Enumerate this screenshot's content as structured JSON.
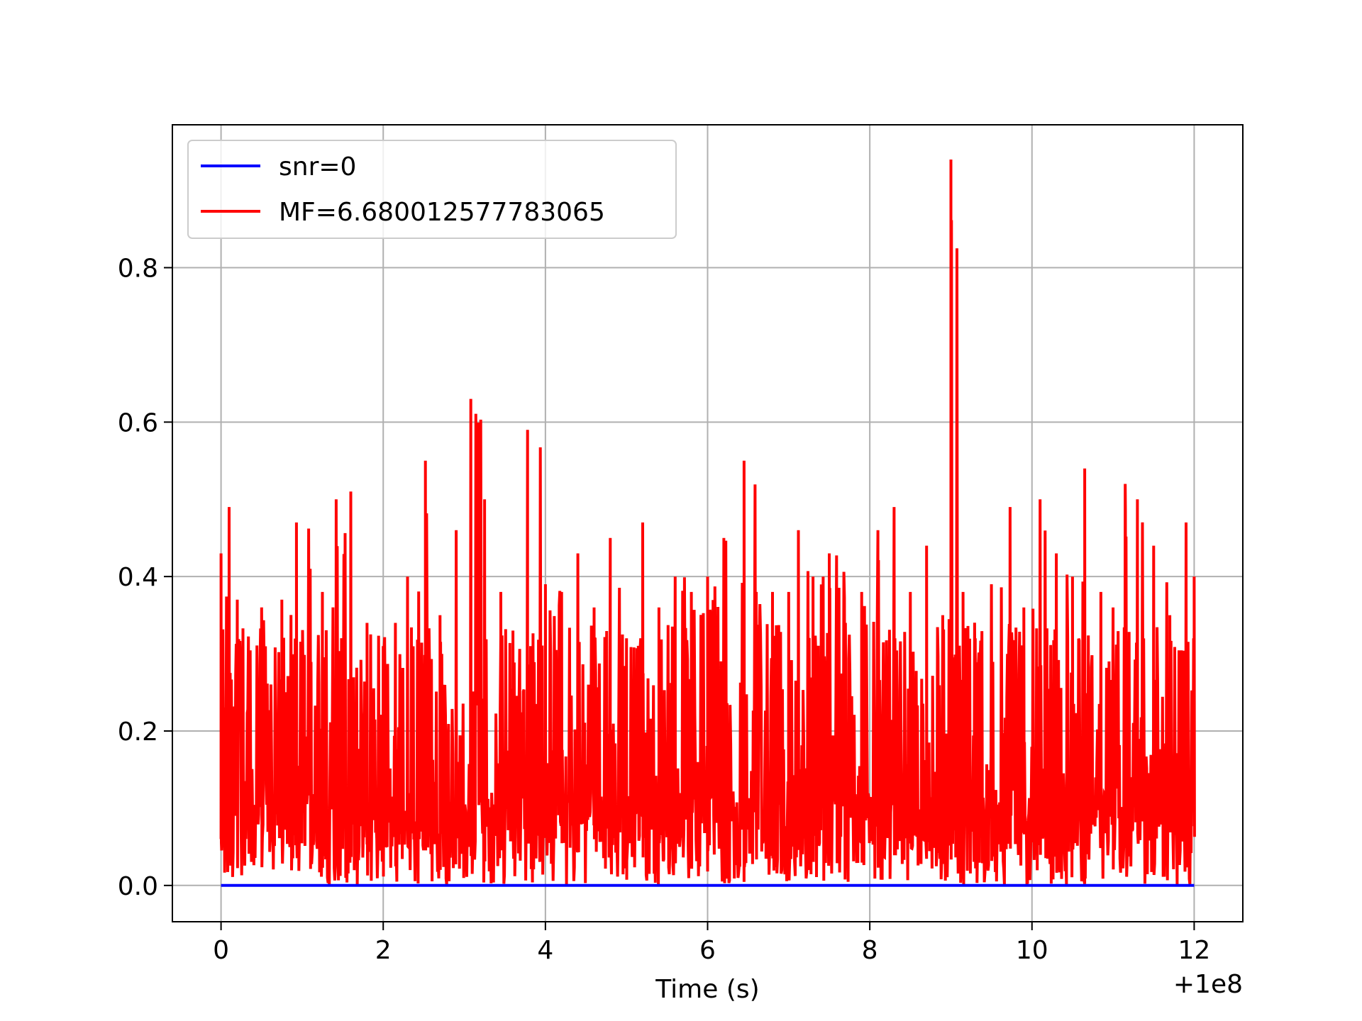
{
  "chart_data": {
    "type": "line",
    "title": "",
    "xlabel": "Time (s)",
    "ylabel": "",
    "x_offset_label": "+1e8",
    "xlim": [
      -0.6,
      12.6
    ],
    "ylim": [
      -0.047,
      0.985
    ],
    "x_ticks": [
      0,
      2,
      4,
      6,
      8,
      10,
      12
    ],
    "x_tick_labels": [
      "0",
      "2",
      "4",
      "6",
      "8",
      "10",
      "12"
    ],
    "y_ticks": [
      0.0,
      0.2,
      0.4,
      0.6,
      0.8
    ],
    "y_tick_labels": [
      "0.0",
      "0.2",
      "0.4",
      "0.6",
      "0.8"
    ],
    "grid": true,
    "legend_position": "upper-left",
    "series": [
      {
        "name": "snr=0",
        "color": "#0000ff",
        "x": [
          0,
          12
        ],
        "y": [
          0.0,
          0.0
        ]
      },
      {
        "name": "MF=6.680012577783065",
        "color": "#ff0000",
        "envelope_x": [
          0,
          0.1,
          0.2,
          0.35,
          0.5,
          0.75,
          0.93,
          1.1,
          1.25,
          1.42,
          1.6,
          1.8,
          2.0,
          2.15,
          2.3,
          2.52,
          2.7,
          2.9,
          3.08,
          3.25,
          3.45,
          3.6,
          3.78,
          4.0,
          4.2,
          4.4,
          4.6,
          4.8,
          5.0,
          5.2,
          5.4,
          5.6,
          5.8,
          6.0,
          6.2,
          6.45,
          6.6,
          6.8,
          7.0,
          7.12,
          7.3,
          7.5,
          7.7,
          7.9,
          8.1,
          8.3,
          8.5,
          8.7,
          8.9,
          9.0,
          9.15,
          9.3,
          9.5,
          9.73,
          9.9,
          10.1,
          10.3,
          10.5,
          10.65,
          10.85,
          11.0,
          11.15,
          11.3,
          11.5,
          11.7,
          11.9,
          12.0
        ],
        "envelope_y": [
          0.43,
          0.49,
          0.37,
          0.3,
          0.36,
          0.37,
          0.47,
          0.41,
          0.38,
          0.5,
          0.51,
          0.34,
          0.31,
          0.34,
          0.4,
          0.55,
          0.35,
          0.46,
          0.63,
          0.5,
          0.38,
          0.33,
          0.59,
          0.39,
          0.38,
          0.43,
          0.36,
          0.45,
          0.32,
          0.47,
          0.36,
          0.4,
          0.38,
          0.4,
          0.45,
          0.55,
          0.38,
          0.38,
          0.38,
          0.46,
          0.4,
          0.43,
          0.34,
          0.38,
          0.46,
          0.49,
          0.38,
          0.44,
          0.35,
          0.94,
          0.38,
          0.32,
          0.39,
          0.49,
          0.36,
          0.5,
          0.43,
          0.4,
          0.54,
          0.38,
          0.36,
          0.52,
          0.5,
          0.44,
          0.35,
          0.47,
          0.4
        ],
        "baseline_range": [
          0.0,
          0.12
        ],
        "typical_range": [
          0.05,
          0.3
        ]
      }
    ]
  }
}
